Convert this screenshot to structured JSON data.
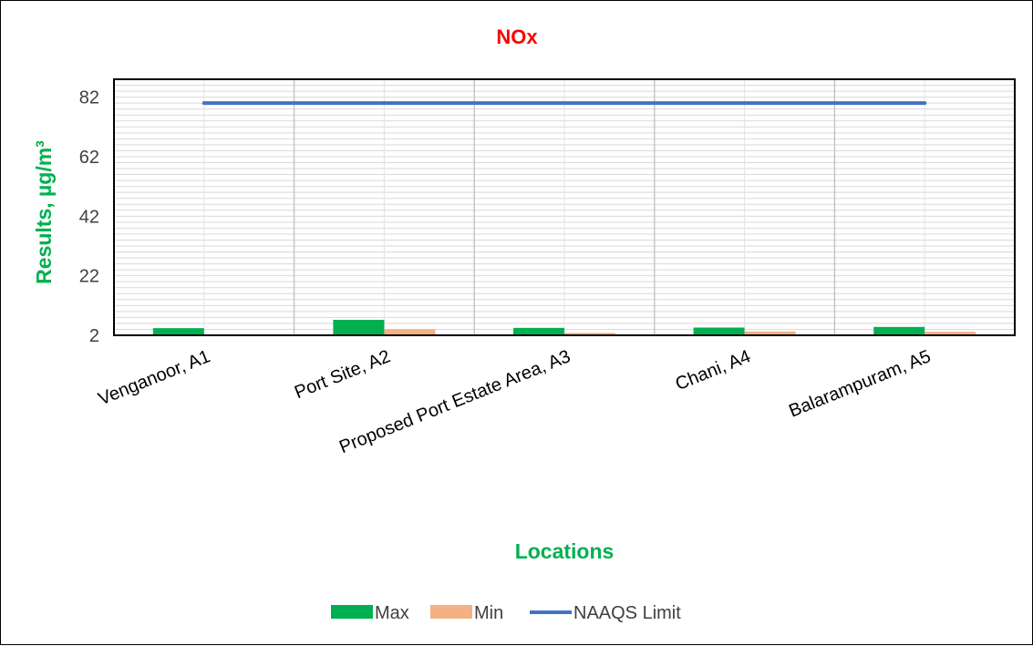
{
  "chart_data": {
    "type": "bar",
    "title": "NOx",
    "xlabel": "Locations",
    "ylabel": "Results, µg/m³",
    "categories": [
      "Venganoor, A1",
      "Port Site, A2",
      "Proposed Port Estate Area, A3",
      "Chani, A4",
      "Balarampuram, A5"
    ],
    "yticks": [
      "2",
      "22",
      "42",
      "62",
      "82"
    ],
    "ylim": [
      2,
      88
    ],
    "grid": true,
    "legend_position": "bottom",
    "series": [
      {
        "name": "Max",
        "kind": "bar",
        "color": "#00b050",
        "values": [
          4.4,
          7.2,
          4.5,
          4.6,
          4.8
        ]
      },
      {
        "name": "Min",
        "kind": "bar",
        "color": "#f4b183",
        "values": [
          2,
          4,
          2.8,
          3.3,
          3.2
        ]
      },
      {
        "name": "NAAQS Limit",
        "kind": "line",
        "color": "#4472c4",
        "values": [
          80,
          80,
          80,
          80,
          80
        ]
      }
    ],
    "colors": {
      "title": "#ff0000",
      "axis_labels": "#00b050"
    }
  }
}
